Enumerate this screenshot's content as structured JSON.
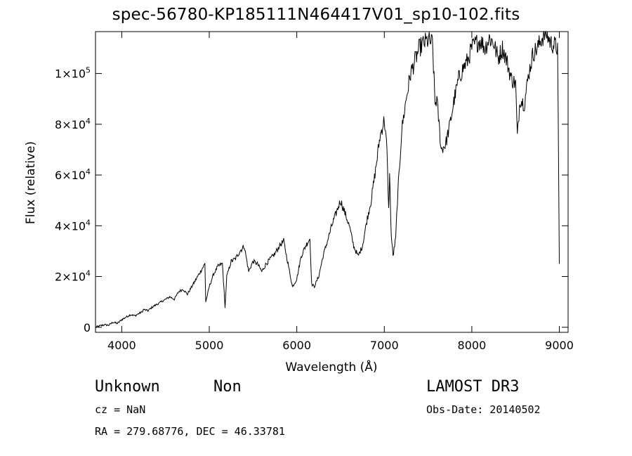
{
  "chart_data": {
    "type": "line",
    "title": "spec-56780-KP185111N464417V01_sp10-102.fits",
    "xlabel": "Wavelength (Å)",
    "ylabel": "Flux (relative)",
    "xlim": [
      3700,
      9100
    ],
    "ylim": [
      -2000,
      116500
    ],
    "xticks": [
      4000,
      5000,
      6000,
      7000,
      8000,
      9000
    ],
    "xtick_labels": [
      "4000",
      "5000",
      "6000",
      "7000",
      "8000",
      "9000"
    ],
    "yticks": [
      0,
      20000,
      40000,
      60000,
      80000,
      100000
    ],
    "ytick_labels": [
      {
        "base": "0",
        "exp": ""
      },
      {
        "base": "2×10",
        "exp": "4"
      },
      {
        "base": "4×10",
        "exp": "4"
      },
      {
        "base": "6×10",
        "exp": "4"
      },
      {
        "base": "8×10",
        "exp": "4"
      },
      {
        "base": "1×10",
        "exp": "5"
      }
    ],
    "series": [
      {
        "name": "flux",
        "x": [
          3700,
          3750,
          3800,
          3850,
          3900,
          3950,
          4000,
          4050,
          4100,
          4150,
          4200,
          4230,
          4250,
          4300,
          4350,
          4400,
          4450,
          4500,
          4550,
          4600,
          4650,
          4700,
          4750,
          4800,
          4850,
          4900,
          4950,
          4960,
          5000,
          5050,
          5100,
          5150,
          5180,
          5200,
          5250,
          5300,
          5350,
          5400,
          5450,
          5500,
          5550,
          5600,
          5650,
          5700,
          5750,
          5800,
          5850,
          5900,
          5950,
          6000,
          6050,
          6100,
          6150,
          6170,
          6200,
          6250,
          6300,
          6350,
          6400,
          6450,
          6500,
          6550,
          6600,
          6650,
          6700,
          6750,
          6800,
          6850,
          6900,
          6950,
          7000,
          7030,
          7050,
          7060,
          7080,
          7100,
          7130,
          7150,
          7200,
          7250,
          7300,
          7350,
          7400,
          7450,
          7500,
          7550,
          7580,
          7600,
          7650,
          7700,
          7750,
          7800,
          7850,
          7900,
          7950,
          8000,
          8050,
          8100,
          8150,
          8200,
          8250,
          8300,
          8350,
          8400,
          8450,
          8500,
          8520,
          8550,
          8600,
          8650,
          8700,
          8750,
          8800,
          8850,
          8900,
          8950,
          8980,
          9000
        ],
        "y": [
          0,
          500,
          1000,
          800,
          2000,
          1500,
          3000,
          4000,
          5000,
          4500,
          5500,
          6000,
          7000,
          6500,
          8000,
          9000,
          10000,
          11000,
          12000,
          11000,
          14000,
          15000,
          13000,
          16000,
          19000,
          22000,
          25000,
          10000,
          16000,
          21000,
          24000,
          25000,
          8000,
          20000,
          26000,
          27000,
          30000,
          32000,
          22000,
          26000,
          25000,
          22000,
          25000,
          27000,
          29000,
          32000,
          34000,
          25000,
          16000,
          19000,
          28000,
          32000,
          35000,
          17000,
          16000,
          20000,
          28000,
          34000,
          40000,
          45000,
          50000,
          45000,
          40000,
          32000,
          28000,
          32000,
          42000,
          50000,
          62000,
          75000,
          82000,
          70000,
          46000,
          60000,
          36000,
          28000,
          35000,
          50000,
          78000,
          90000,
          100000,
          105000,
          110000,
          112000,
          113000,
          112000,
          88000,
          90000,
          70000,
          72000,
          80000,
          90000,
          98000,
          102000,
          105000,
          110000,
          112000,
          113000,
          110000,
          114000,
          112000,
          106000,
          110000,
          105000,
          98000,
          96000,
          75000,
          90000,
          88000,
          100000,
          108000,
          110000,
          114000,
          116000,
          112000,
          111000,
          110000,
          25000
        ]
      }
    ]
  },
  "info": {
    "object_class": "Unknown",
    "subclass": "Non",
    "cz": "cz = NaN",
    "coords": "RA = 279.68776, DEC =  46.33781",
    "survey": "LAMOST DR3",
    "obs_date": "Obs-Date: 20140502"
  }
}
